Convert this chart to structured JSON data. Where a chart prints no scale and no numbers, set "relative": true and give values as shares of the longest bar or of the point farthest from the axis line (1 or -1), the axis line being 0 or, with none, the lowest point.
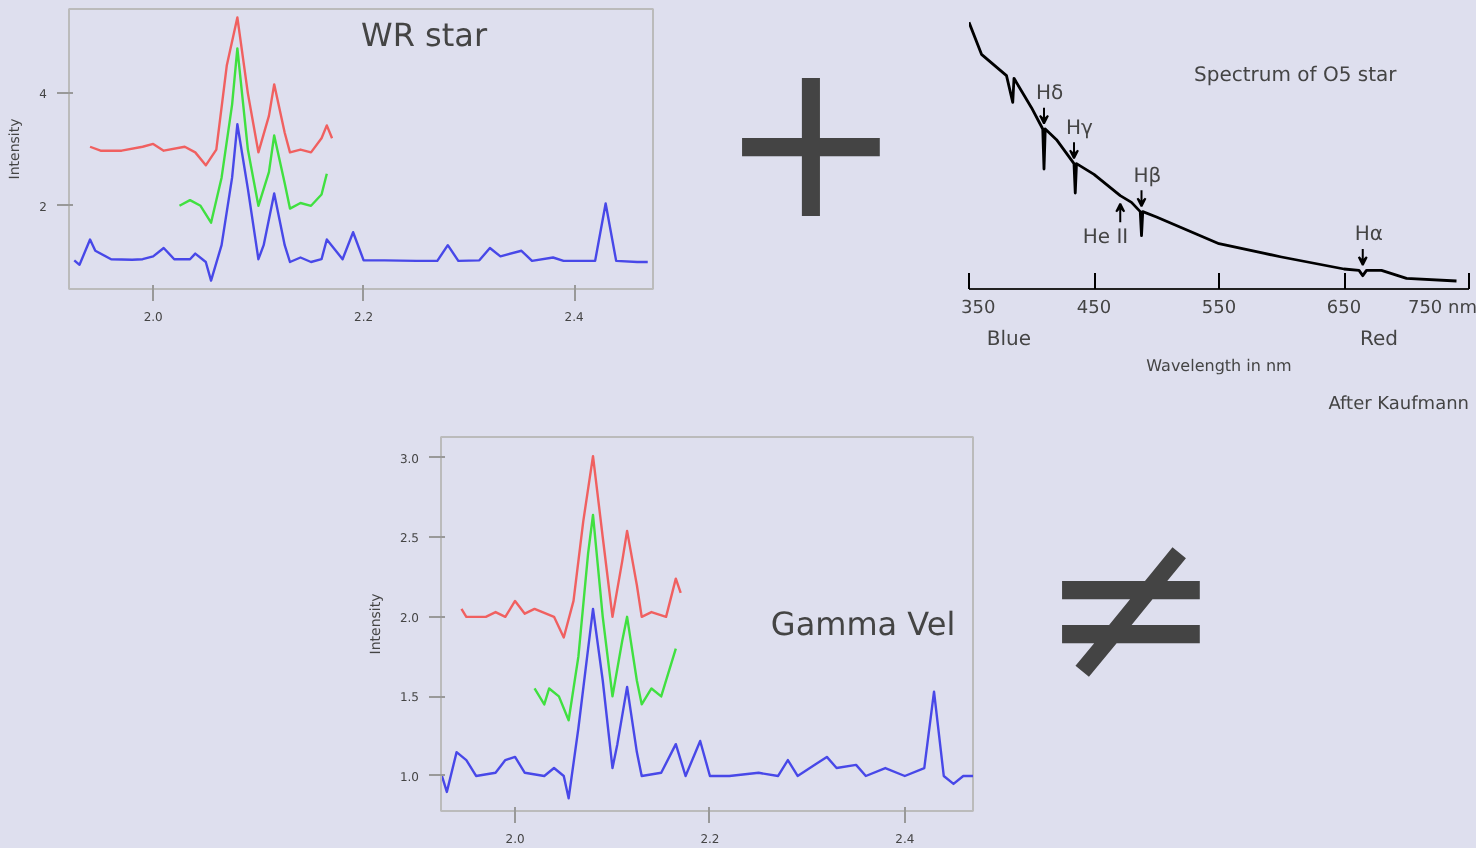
{
  "chart_data": [
    {
      "type": "line",
      "title": "WR star",
      "ylabel": "Intensity",
      "xlim": [
        1.92,
        2.475
      ],
      "ylim": [
        0.52,
        5.5
      ],
      "xticks": [
        {
          "value": 2.0,
          "label": "2.0"
        },
        {
          "value": 2.2,
          "label": "2.2"
        },
        {
          "value": 2.4,
          "label": "2.4"
        }
      ],
      "yticks": [
        2,
        4
      ],
      "grid": false,
      "marker": "none",
      "line_style": "solid",
      "series": [
        {
          "color": "#f06060",
          "x": [
            1.94,
            1.95,
            1.97,
            1.99,
            2.0,
            2.01,
            2.03,
            2.04,
            2.05,
            2.06,
            2.07,
            2.08,
            2.09,
            2.1,
            2.11,
            2.115,
            2.125,
            2.13,
            2.14,
            2.15,
            2.16,
            2.165,
            2.17
          ],
          "values": [
            3.05,
            2.98,
            2.98,
            3.05,
            3.1,
            2.98,
            3.05,
            2.95,
            2.72,
            3.0,
            4.5,
            5.35,
            4.0,
            2.95,
            3.6,
            4.16,
            3.3,
            2.95,
            3.0,
            2.95,
            3.2,
            3.43,
            3.2
          ]
        },
        {
          "color": "#40e040",
          "x": [
            2.025,
            2.035,
            2.045,
            2.055,
            2.065,
            2.075,
            2.08,
            2.09,
            2.1,
            2.11,
            2.115,
            2.125,
            2.13,
            2.14,
            2.15,
            2.16,
            2.165
          ],
          "values": [
            2.0,
            2.1,
            2.0,
            1.7,
            2.5,
            3.8,
            4.8,
            3.0,
            2.0,
            2.6,
            3.25,
            2.4,
            1.95,
            2.05,
            2.0,
            2.2,
            2.57
          ]
        },
        {
          "color": "#4848e8",
          "x": [
            1.925,
            1.93,
            1.94,
            1.945,
            1.96,
            1.98,
            1.99,
            2.0,
            2.01,
            2.02,
            2.035,
            2.04,
            2.05,
            2.055,
            2.065,
            2.075,
            2.08,
            2.09,
            2.1,
            2.105,
            2.115,
            2.125,
            2.13,
            2.14,
            2.15,
            2.16,
            2.165,
            2.18,
            2.19,
            2.2,
            2.22,
            2.25,
            2.27,
            2.28,
            2.29,
            2.31,
            2.32,
            2.33,
            2.35,
            2.36,
            2.38,
            2.39,
            2.42,
            2.43,
            2.44,
            2.46,
            2.47
          ],
          "values": [
            1.03,
            0.95,
            1.4,
            1.2,
            1.05,
            1.04,
            1.05,
            1.1,
            1.25,
            1.05,
            1.05,
            1.15,
            1.0,
            0.67,
            1.3,
            2.5,
            3.45,
            2.3,
            1.05,
            1.3,
            2.22,
            1.3,
            1.0,
            1.08,
            1.0,
            1.05,
            1.4,
            1.05,
            1.53,
            1.03,
            1.03,
            1.02,
            1.02,
            1.3,
            1.02,
            1.03,
            1.25,
            1.1,
            1.2,
            1.02,
            1.08,
            1.02,
            1.02,
            2.04,
            1.02,
            1.0,
            1.0
          ]
        }
      ]
    },
    {
      "type": "other",
      "annotations": [
        "+"
      ]
    },
    {
      "type": "line",
      "title": "Spectrum of O5 star",
      "xlabel": "Wavelength in nm",
      "relative": true,
      "xlim": [
        350,
        750
      ],
      "xticks": [
        350,
        450,
        550,
        650,
        {
          "value": 750,
          "label": "750 nm"
        }
      ],
      "grid": false,
      "marker": "none",
      "line_style": "solid",
      "tick_labels": "x",
      "series": [
        {
          "color": "#000000",
          "x": [
            350,
            360,
            380,
            385,
            386,
            400,
            409,
            410,
            411,
            420,
            434,
            435,
            436,
            450,
            471,
            480,
            487,
            488,
            489,
            500,
            550,
            600,
            650,
            662,
            665,
            668,
            680,
            700,
            740
          ],
          "values": [
            1.0,
            0.88,
            0.8,
            0.7,
            0.79,
            0.68,
            0.6,
            0.45,
            0.6,
            0.56,
            0.47,
            0.36,
            0.47,
            0.43,
            0.35,
            0.325,
            0.29,
            0.2,
            0.29,
            0.27,
            0.17,
            0.12,
            0.075,
            0.07,
            0.05,
            0.07,
            0.07,
            0.04,
            0.03
          ]
        }
      ],
      "annotations": [
        {
          "text": "Hδ",
          "x": 410,
          "y": 0.6
        },
        {
          "text": "Hγ",
          "x": 434,
          "y": 0.47
        },
        {
          "text": "Hβ",
          "x": 488,
          "y": 0.29
        },
        {
          "text": "He II",
          "x": 471,
          "y": 0.35
        },
        {
          "text": "Hα",
          "x": 665,
          "y": 0.07
        },
        "Blue",
        "Red",
        "After Kaufmann"
      ]
    },
    {
      "type": "other",
      "annotations": [
        "≠"
      ]
    },
    {
      "type": "line",
      "title": "Gamma Vel",
      "ylabel": "Intensity",
      "xlim": [
        1.924,
        2.47
      ],
      "ylim": [
        0.78,
        3.13
      ],
      "xticks": [
        {
          "value": 2.0,
          "label": "2.0"
        },
        {
          "value": 2.2,
          "label": "2.2"
        },
        {
          "value": 2.4,
          "label": "2.4"
        }
      ],
      "yticks": [
        {
          "value": 1.0,
          "label": "1.0"
        },
        1.5,
        {
          "value": 2.0,
          "label": "2.0"
        },
        2.5,
        {
          "value": 3.0,
          "label": "3.0"
        }
      ],
      "grid": false,
      "marker": "none",
      "line_style": "solid",
      "series": [
        {
          "color": "#f06060",
          "x": [
            1.945,
            1.95,
            1.97,
            1.98,
            1.99,
            2.0,
            2.01,
            2.02,
            2.04,
            2.05,
            2.06,
            2.07,
            2.08,
            2.09,
            2.1,
            2.11,
            2.115,
            2.125,
            2.13,
            2.14,
            2.155,
            2.165,
            2.17
          ],
          "values": [
            2.05,
            2.0,
            2.0,
            2.03,
            2.0,
            2.1,
            2.02,
            2.05,
            2.0,
            1.87,
            2.1,
            2.6,
            3.01,
            2.5,
            2.0,
            2.35,
            2.54,
            2.2,
            2.0,
            2.03,
            2.0,
            2.24,
            2.15
          ]
        },
        {
          "color": "#40e040",
          "x": [
            2.02,
            2.03,
            2.035,
            2.045,
            2.055,
            2.065,
            2.075,
            2.08,
            2.09,
            2.1,
            2.11,
            2.115,
            2.125,
            2.13,
            2.14,
            2.15,
            2.165
          ],
          "values": [
            1.55,
            1.45,
            1.55,
            1.5,
            1.35,
            1.75,
            2.4,
            2.64,
            2.0,
            1.5,
            1.85,
            2.0,
            1.6,
            1.45,
            1.55,
            1.5,
            1.8
          ]
        },
        {
          "color": "#4848e8",
          "x": [
            1.925,
            1.93,
            1.94,
            1.95,
            1.96,
            1.98,
            1.99,
            2.0,
            2.01,
            2.03,
            2.04,
            2.05,
            2.055,
            2.065,
            2.075,
            2.08,
            2.09,
            2.1,
            2.105,
            2.115,
            2.125,
            2.13,
            2.15,
            2.165,
            2.175,
            2.19,
            2.2,
            2.22,
            2.25,
            2.27,
            2.28,
            2.29,
            2.32,
            2.33,
            2.35,
            2.36,
            2.38,
            2.4,
            2.42,
            2.43,
            2.44,
            2.45,
            2.46,
            2.47
          ],
          "values": [
            1.0,
            0.9,
            1.15,
            1.1,
            1.0,
            1.02,
            1.1,
            1.12,
            1.02,
            1.0,
            1.05,
            1.0,
            0.86,
            1.3,
            1.8,
            2.05,
            1.6,
            1.05,
            1.2,
            1.56,
            1.15,
            1.0,
            1.02,
            1.2,
            1.0,
            1.22,
            1.0,
            1.0,
            1.02,
            1.0,
            1.1,
            1.0,
            1.12,
            1.05,
            1.07,
            1.0,
            1.05,
            1.0,
            1.05,
            1.53,
            1.0,
            0.95,
            1.0,
            1.0
          ]
        }
      ]
    }
  ]
}
